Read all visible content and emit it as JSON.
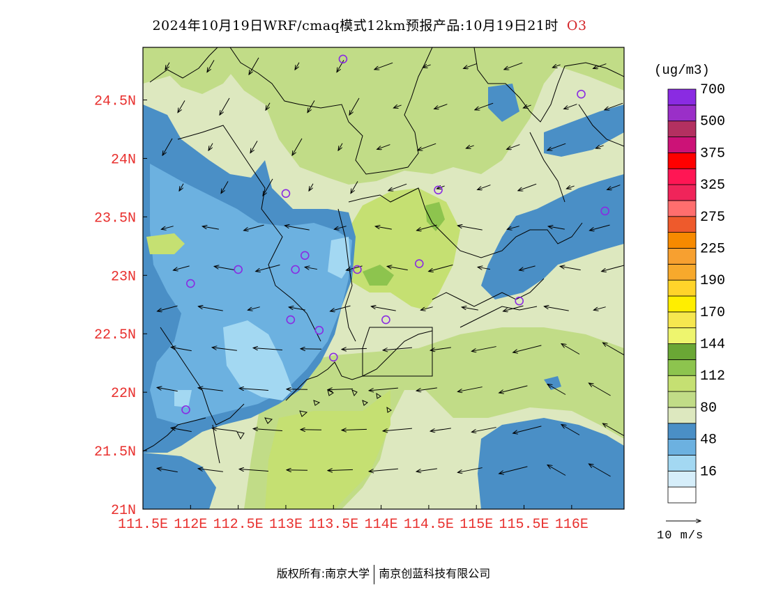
{
  "title": {
    "main": "2024年10月19日WRF/cmaq模式12km预报产品:10月19日21时",
    "species": "O3"
  },
  "colorbar": {
    "unit": "(ug/m3)",
    "bins": [
      {
        "color": "#ffffff",
        "label": ""
      },
      {
        "color": "#d6eefa",
        "label": "16"
      },
      {
        "color": "#a3d8f2",
        "label": ""
      },
      {
        "color": "#6cb1e0",
        "label": "48"
      },
      {
        "color": "#4a8fc6",
        "label": ""
      },
      {
        "color": "#dde8bf",
        "label": "80"
      },
      {
        "color": "#c1dc87",
        "label": ""
      },
      {
        "color": "#c5e072",
        "label": "112"
      },
      {
        "color": "#8dc44e",
        "label": ""
      },
      {
        "color": "#6aa735",
        "label": "144"
      },
      {
        "color": "#eef56e",
        "label": ""
      },
      {
        "color": "#f6e74f",
        "label": "170"
      },
      {
        "color": "#ffee00",
        "label": ""
      },
      {
        "color": "#ffd42a",
        "label": "190"
      },
      {
        "color": "#f7a92c",
        "label": ""
      },
      {
        "color": "#f7a030",
        "label": "225"
      },
      {
        "color": "#f78a00",
        "label": ""
      },
      {
        "color": "#ee5a2c",
        "label": "275"
      },
      {
        "color": "#ff6e6e",
        "label": ""
      },
      {
        "color": "#f0245a",
        "label": "325"
      },
      {
        "color": "#ff1654",
        "label": ""
      },
      {
        "color": "#ff0000",
        "label": "375"
      },
      {
        "color": "#cc1277",
        "label": ""
      },
      {
        "color": "#b33060",
        "label": "500"
      },
      {
        "color": "#9a2fc8",
        "label": ""
      },
      {
        "color": "#8a2be2",
        "label": "700"
      }
    ]
  },
  "axes": {
    "x_ticks": [
      "111.5E",
      "112E",
      "112.5E",
      "113E",
      "113.5E",
      "114E",
      "114.5E",
      "115E",
      "115.5E",
      "116E"
    ],
    "y_ticks": [
      "21N",
      "21.5N",
      "22N",
      "22.5N",
      "23N",
      "23.5N",
      "24N",
      "24.5N"
    ],
    "x_range": [
      111.5,
      116.55
    ],
    "y_range": [
      21.0,
      24.95
    ],
    "tick_color": "#e8302e"
  },
  "wind_scale": {
    "label": "10 m/s"
  },
  "footer": {
    "left": "版权所有:南京大学",
    "right": "南京创蓝科技有限公司"
  },
  "map_colors": {
    "dark_blue": "#4a8fc6",
    "mid_blue": "#6cb1e0",
    "light_blue": "#a3d8f2",
    "pale_green": "#dde8bf",
    "light_green": "#c1dc87",
    "green": "#c5e072",
    "dark_green": "#8dc44e",
    "station_marker": "#8a2be2"
  },
  "stations": [
    {
      "lon": 113.6,
      "lat": 24.85
    },
    {
      "lon": 116.1,
      "lat": 24.55
    },
    {
      "lon": 113.0,
      "lat": 23.7
    },
    {
      "lon": 114.6,
      "lat": 23.73
    },
    {
      "lon": 116.35,
      "lat": 23.55
    },
    {
      "lon": 113.2,
      "lat": 23.17
    },
    {
      "lon": 112.5,
      "lat": 23.05
    },
    {
      "lon": 113.1,
      "lat": 23.05
    },
    {
      "lon": 113.75,
      "lat": 23.05
    },
    {
      "lon": 114.4,
      "lat": 23.1
    },
    {
      "lon": 112.0,
      "lat": 22.93
    },
    {
      "lon": 115.45,
      "lat": 22.78
    },
    {
      "lon": 113.05,
      "lat": 22.62
    },
    {
      "lon": 114.05,
      "lat": 22.62
    },
    {
      "lon": 113.35,
      "lat": 22.53
    },
    {
      "lon": 113.5,
      "lat": 22.3
    },
    {
      "lon": 111.95,
      "lat": 21.85
    }
  ]
}
